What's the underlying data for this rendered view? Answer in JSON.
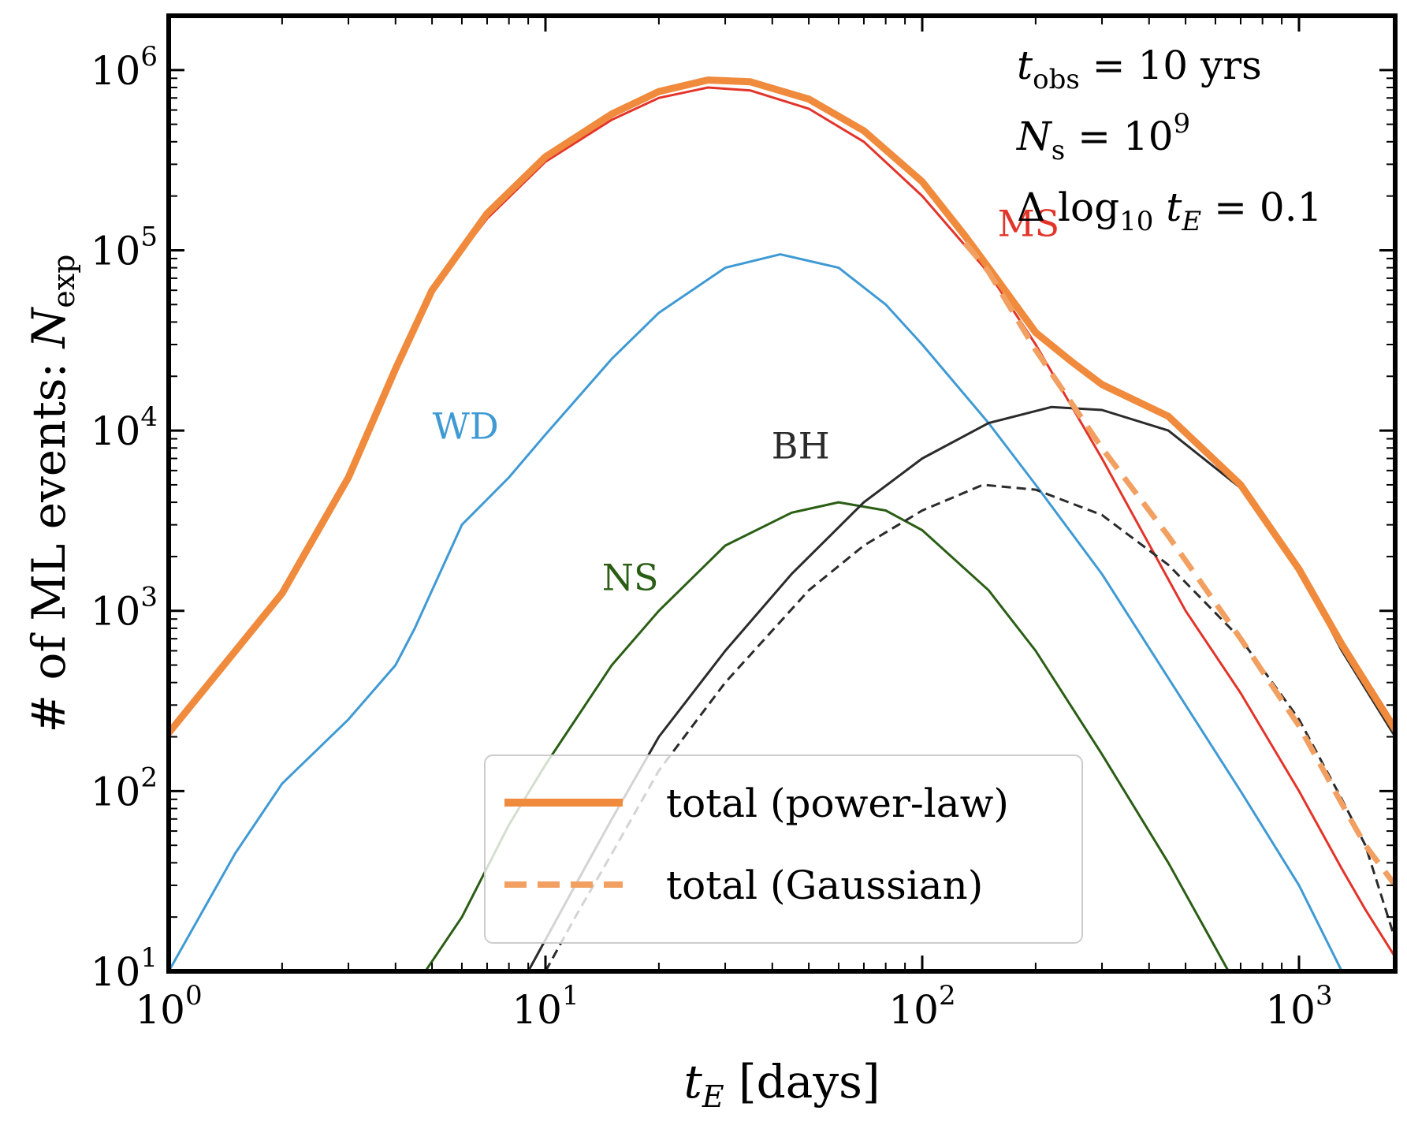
{
  "chart_data": {
    "type": "line",
    "x_scale": "log",
    "y_scale": "log",
    "xlim": [
      1,
      1800
    ],
    "ylim": [
      10,
      2000000
    ],
    "xlabel": "t_E [days]",
    "ylabel": "# of ML events: N_exp",
    "x_ticks": [
      {
        "value": 1,
        "base": "10",
        "exp": "0"
      },
      {
        "value": 10,
        "base": "10",
        "exp": "1"
      },
      {
        "value": 100,
        "base": "10",
        "exp": "2"
      },
      {
        "value": 1000,
        "base": "10",
        "exp": "3"
      }
    ],
    "y_ticks": [
      {
        "value": 10,
        "base": "10",
        "exp": "1"
      },
      {
        "value": 100,
        "base": "10",
        "exp": "2"
      },
      {
        "value": 1000,
        "base": "10",
        "exp": "3"
      },
      {
        "value": 10000,
        "base": "10",
        "exp": "4"
      },
      {
        "value": 100000,
        "base": "10",
        "exp": "5"
      },
      {
        "value": 1000000,
        "base": "10",
        "exp": "6"
      }
    ],
    "annotations": [
      "t_obs = 10 yrs",
      "N_s = 10^9",
      "Δ log10 t_E = 0.1"
    ],
    "legend": {
      "placement": "lower-center",
      "entries": [
        {
          "label": "total (power-law)",
          "style": "solid",
          "color": "#f08a3c"
        },
        {
          "label": "total (Gaussian)",
          "style": "dashed",
          "color": "#f2a062"
        }
      ]
    },
    "series": [
      {
        "name": "MS",
        "color": "#e3342a",
        "style": "solid",
        "width": 3,
        "label_at": [
          2.2,
          120000.0
        ],
        "points": [
          [
            1,
            210
          ],
          [
            2,
            1250
          ],
          [
            3,
            5500
          ],
          [
            4,
            22000
          ],
          [
            5,
            60000
          ],
          [
            7,
            150000
          ],
          [
            10,
            310000
          ],
          [
            15,
            530000
          ],
          [
            20,
            700000
          ],
          [
            27,
            800000
          ],
          [
            35,
            770000
          ],
          [
            50,
            610000
          ],
          [
            70,
            400000
          ],
          [
            100,
            200000
          ],
          [
            150,
            75000
          ],
          [
            200,
            30000
          ],
          [
            300,
            7000
          ],
          [
            500,
            1000
          ],
          [
            700,
            350
          ],
          [
            1000,
            100
          ],
          [
            1300,
            37
          ],
          [
            1500,
            22
          ],
          [
            1800,
            12
          ]
        ]
      },
      {
        "name": "WD",
        "color": "#3f9ad4",
        "style": "solid",
        "width": 3,
        "label_at": [
          0.7,
          9000
        ],
        "points": [
          [
            1,
            10
          ],
          [
            1.5,
            45
          ],
          [
            2,
            110
          ],
          [
            3,
            250
          ],
          [
            4,
            500
          ],
          [
            4.5,
            800
          ],
          [
            5,
            1300
          ],
          [
            6,
            3000
          ],
          [
            8,
            5500
          ],
          [
            10,
            9500
          ],
          [
            15,
            25000
          ],
          [
            20,
            45000
          ],
          [
            30,
            80000
          ],
          [
            42,
            95000
          ],
          [
            60,
            80000
          ],
          [
            80,
            50000
          ],
          [
            100,
            30000
          ],
          [
            150,
            11000
          ],
          [
            200,
            5000
          ],
          [
            300,
            1600
          ],
          [
            500,
            300
          ],
          [
            700,
            100
          ],
          [
            1000,
            30
          ],
          [
            1300,
            10
          ]
        ]
      },
      {
        "name": "NS",
        "color": "#2b5e15",
        "style": "solid",
        "width": 3,
        "label_at": [
          1.15,
          1300
        ],
        "points": [
          [
            4.8,
            10
          ],
          [
            6,
            20
          ],
          [
            8,
            65
          ],
          [
            10,
            140
          ],
          [
            15,
            500
          ],
          [
            20,
            1000
          ],
          [
            30,
            2300
          ],
          [
            45,
            3500
          ],
          [
            60,
            4000
          ],
          [
            80,
            3600
          ],
          [
            100,
            2800
          ],
          [
            150,
            1300
          ],
          [
            200,
            600
          ],
          [
            300,
            160
          ],
          [
            450,
            40
          ],
          [
            650,
            10
          ]
        ]
      },
      {
        "name": "BH",
        "color": "#2b2b2b",
        "style": "solid",
        "width": 3,
        "label_at": [
          1.6,
          7000
        ],
        "points": [
          [
            9,
            10
          ],
          [
            12,
            30
          ],
          [
            15,
            70
          ],
          [
            20,
            200
          ],
          [
            30,
            600
          ],
          [
            45,
            1600
          ],
          [
            70,
            4000
          ],
          [
            100,
            7000
          ],
          [
            150,
            11000
          ],
          [
            220,
            13500
          ],
          [
            300,
            13000
          ],
          [
            450,
            10000
          ],
          [
            700,
            4800
          ],
          [
            1000,
            1700
          ],
          [
            1300,
            600
          ],
          [
            1800,
            200
          ]
        ]
      },
      {
        "name": "",
        "color": "#2b2b2b",
        "style": "dashed",
        "width": 3,
        "points": [
          [
            10,
            10
          ],
          [
            12,
            20
          ],
          [
            15,
            45
          ],
          [
            20,
            130
          ],
          [
            30,
            400
          ],
          [
            50,
            1300
          ],
          [
            70,
            2300
          ],
          [
            100,
            3600
          ],
          [
            145,
            5000
          ],
          [
            200,
            4700
          ],
          [
            300,
            3400
          ],
          [
            450,
            1800
          ],
          [
            700,
            700
          ],
          [
            1000,
            250
          ],
          [
            1300,
            90
          ],
          [
            1500,
            50
          ],
          [
            1800,
            15
          ]
        ]
      },
      {
        "name": "",
        "color": "#f08a3c",
        "style": "solid",
        "width": 9,
        "points": [
          [
            1,
            210
          ],
          [
            2,
            1250
          ],
          [
            3,
            5500
          ],
          [
            4,
            22000
          ],
          [
            5,
            60000
          ],
          [
            7,
            160000
          ],
          [
            10,
            330000
          ],
          [
            15,
            570000
          ],
          [
            20,
            760000
          ],
          [
            27,
            880000
          ],
          [
            35,
            860000
          ],
          [
            50,
            690000
          ],
          [
            70,
            460000
          ],
          [
            100,
            240000
          ],
          [
            130,
            120000
          ],
          [
            150,
            80000
          ],
          [
            200,
            35000
          ],
          [
            250,
            24000
          ],
          [
            300,
            18000
          ],
          [
            450,
            12000
          ],
          [
            700,
            5000
          ],
          [
            1000,
            1700
          ],
          [
            1300,
            650
          ],
          [
            1800,
            220
          ]
        ]
      },
      {
        "name": "",
        "color": "#f2a062",
        "style": "dashed",
        "width": 7,
        "points": [
          [
            130,
            110000
          ],
          [
            150,
            76000
          ],
          [
            200,
            28000
          ],
          [
            300,
            8000
          ],
          [
            450,
            2600
          ],
          [
            700,
            700
          ],
          [
            1000,
            230
          ],
          [
            1300,
            85
          ],
          [
            1500,
            50
          ],
          [
            1800,
            30
          ]
        ]
      }
    ]
  }
}
